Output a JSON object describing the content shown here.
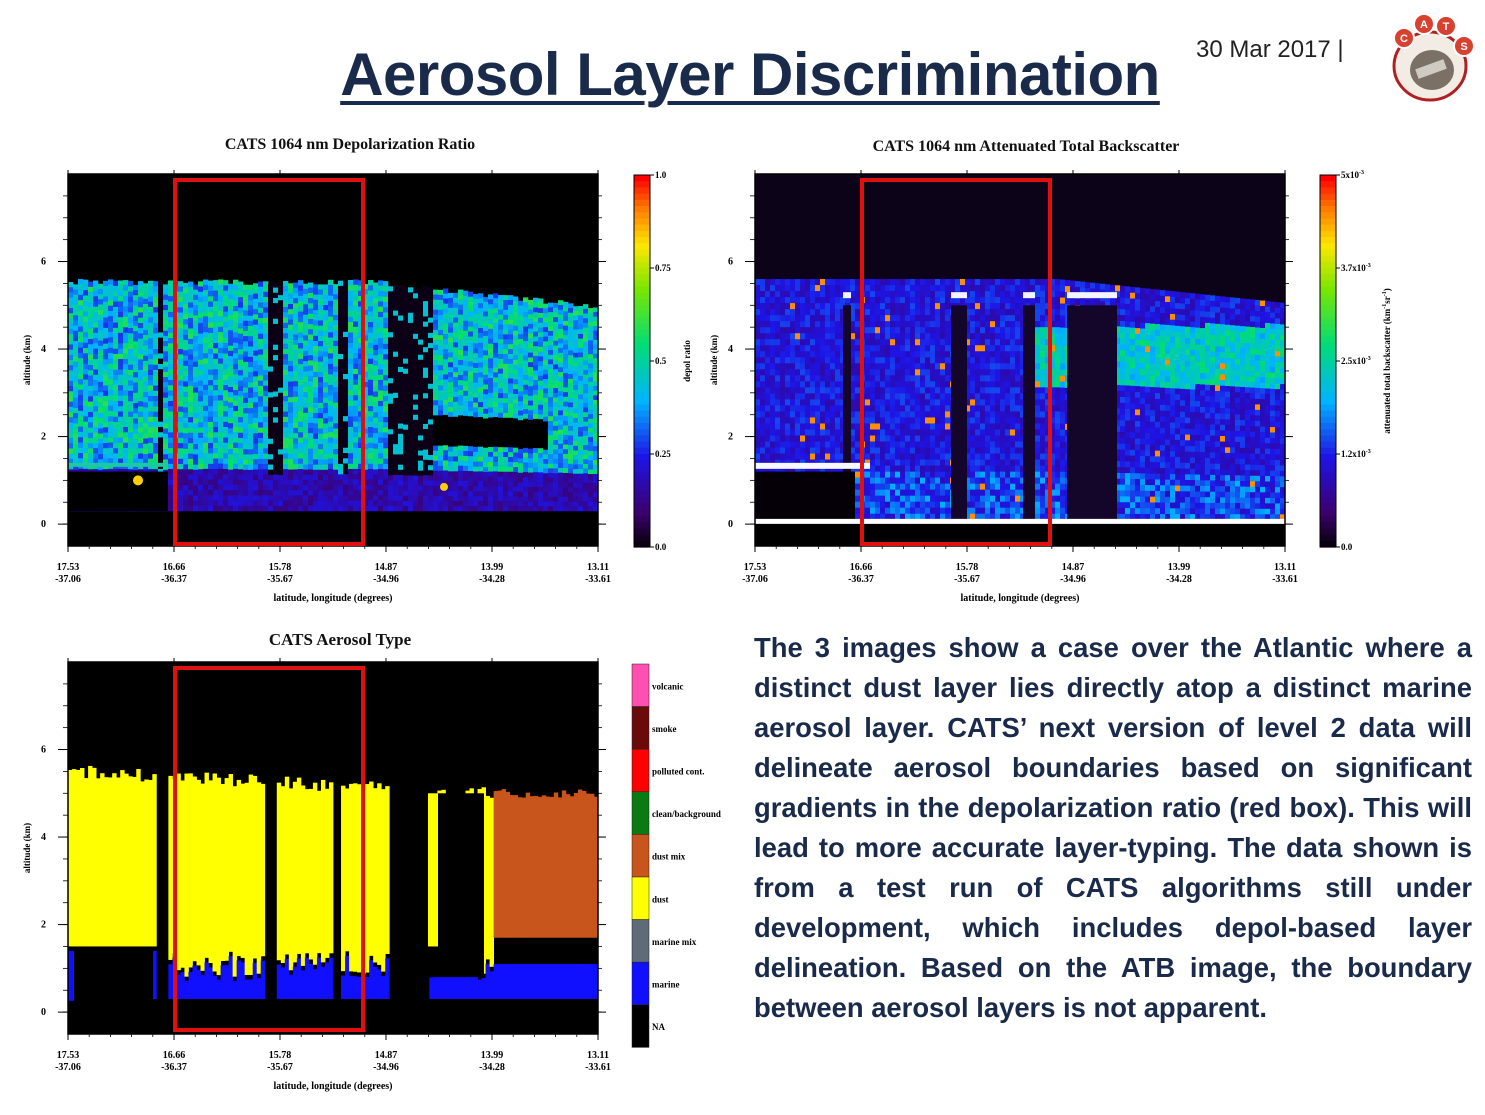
{
  "header": {
    "title": "Aerosol Layer Discrimination",
    "date": "30 Mar 2017 |",
    "logo_letters": [
      "C",
      "A",
      "T",
      "S"
    ]
  },
  "description": "The 3 images show a case over the Atlantic where a distinct dust layer lies directly atop a distinct marine aerosol layer. CATS’ next version of level 2 data will delineate aerosol boundaries based on significant gradients in the depolarization ratio (red box). This will lead to more accurate layer-typing. The data shown is from a test run of CATS algorithms still under development, which includes depol-based layer delineation. Based on the ATB image, the boundary between aerosol layers is not apparent.",
  "chart_data": [
    {
      "type": "heatmap",
      "title": "CATS 1064 nm Depolarization Ratio",
      "xlabel": "latitude, longitude (degrees)",
      "ylabel": "altitude (km)",
      "x_ticks": [
        {
          "lat": "17.53",
          "lon": "-37.06"
        },
        {
          "lat": "16.66",
          "lon": "-36.37"
        },
        {
          "lat": "15.78",
          "lon": "-35.67"
        },
        {
          "lat": "14.87",
          "lon": "-34.96"
        },
        {
          "lat": "13.99",
          "lon": "-34.28"
        },
        {
          "lat": "13.11",
          "lon": "-33.61"
        }
      ],
      "y_ticks": [
        "0",
        "2",
        "4",
        "6"
      ],
      "ylim": [
        -0.5,
        8
      ],
      "colorbar": {
        "label": "depol ratio",
        "ticks": [
          "0.0",
          "0.25",
          "0.5",
          "0.75",
          "1.0"
        ],
        "range": [
          0,
          1
        ]
      },
      "highlight_box": {
        "x_range": [
          "16.66",
          "14.87"
        ],
        "color": "#e01010"
      }
    },
    {
      "type": "heatmap",
      "title": "CATS 1064 nm Attenuated Total Backscatter",
      "xlabel": "latitude, longitude (degrees)",
      "ylabel": "altitude (km)",
      "x_ticks": [
        {
          "lat": "17.53",
          "lon": "-37.06"
        },
        {
          "lat": "16.66",
          "lon": "-36.37"
        },
        {
          "lat": "15.78",
          "lon": "-35.67"
        },
        {
          "lat": "14.87",
          "lon": "-34.96"
        },
        {
          "lat": "13.99",
          "lon": "-34.28"
        },
        {
          "lat": "13.11",
          "lon": "-33.61"
        }
      ],
      "y_ticks": [
        "0",
        "2",
        "4",
        "6"
      ],
      "ylim": [
        -0.5,
        8
      ],
      "colorbar": {
        "label": "attenuated total backscatter",
        "unit": "(km",
        "unit_exp1": "-1",
        "unit_mid": "sr",
        "unit_exp2": "-1",
        "unit_end": ")",
        "ticks": [
          {
            "base": "0.0",
            "exp": ""
          },
          {
            "base": "1.2x10",
            "exp": "-3"
          },
          {
            "base": "2.5x10",
            "exp": "-3"
          },
          {
            "base": "3.7x10",
            "exp": "-3"
          },
          {
            "base": "5x10",
            "exp": "-3"
          }
        ],
        "range": [
          0,
          0.005
        ]
      },
      "highlight_box": {
        "x_range": [
          "16.66",
          "14.87"
        ],
        "color": "#e01010"
      }
    },
    {
      "type": "heatmap",
      "title": "CATS Aerosol Type",
      "xlabel": "latitude, longitude (degrees)",
      "ylabel": "altitude (km)",
      "x_ticks": [
        {
          "lat": "17.53",
          "lon": "-37.06"
        },
        {
          "lat": "16.66",
          "lon": "-36.37"
        },
        {
          "lat": "15.78",
          "lon": "-35.67"
        },
        {
          "lat": "14.87",
          "lon": "-34.96"
        },
        {
          "lat": "13.99",
          "lon": "-34.28"
        },
        {
          "lat": "13.11",
          "lon": "-33.61"
        }
      ],
      "y_ticks": [
        "0",
        "2",
        "4",
        "6"
      ],
      "ylim": [
        -0.5,
        8
      ],
      "legend": [
        {
          "label": "volcanic",
          "color": "#ff4fb0"
        },
        {
          "label": "smoke",
          "color": "#6b0a0a"
        },
        {
          "label": "polluted cont.",
          "color": "#ff0000"
        },
        {
          "label": "clean/background",
          "color": "#0b7a12"
        },
        {
          "label": "dust mix",
          "color": "#c8561c"
        },
        {
          "label": "dust",
          "color": "#ffff00"
        },
        {
          "label": "marine mix",
          "color": "#5f6b78"
        },
        {
          "label": "marine",
          "color": "#1010ff"
        },
        {
          "label": "NA",
          "color": "#000000"
        }
      ],
      "highlight_box": {
        "x_range": [
          "16.66",
          "14.87"
        ],
        "color": "#e01010"
      }
    }
  ]
}
